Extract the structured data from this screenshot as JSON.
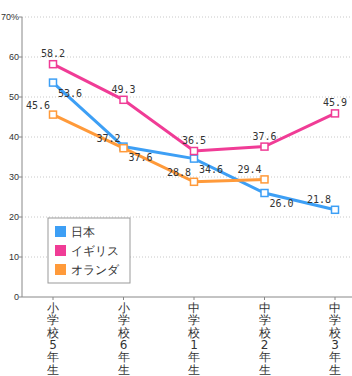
{
  "chart_data": {
    "type": "line",
    "categories": [
      "小学校5年生",
      "小学校6年生",
      "中学校1年生",
      "中学校2年生",
      "中学校3年生"
    ],
    "series": [
      {
        "name": "日本",
        "color": "#3d9ff5",
        "values": [
          53.6,
          37.6,
          34.6,
          26.0,
          21.8
        ],
        "value_labels": [
          "53.6",
          "37.6",
          "34.6",
          "26.0",
          "21.8"
        ]
      },
      {
        "name": "イギリス",
        "color": "#f03c96",
        "values": [
          58.2,
          49.3,
          36.5,
          37.6,
          45.9
        ],
        "value_labels": [
          "58.2",
          "49.3",
          "36.5",
          "37.6",
          "45.9"
        ]
      },
      {
        "name": "オランダ",
        "color": "#ff9a3a",
        "values": [
          45.6,
          37.2,
          28.8,
          29.4,
          null
        ],
        "value_labels": [
          "45.6",
          "37.2",
          "28.8",
          "29.4",
          null
        ]
      }
    ],
    "ylim": [
      0,
      70
    ],
    "yticks": [
      0,
      10,
      20,
      30,
      40,
      50,
      60,
      {
        "value": 70,
        "label": "70%"
      }
    ],
    "grid": true,
    "legend": "lower left",
    "data_labels": true,
    "marker": "square",
    "line_style": "solid"
  }
}
